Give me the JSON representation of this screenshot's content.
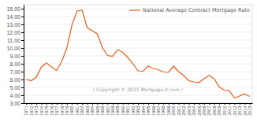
{
  "chart_data": {
    "type": "line",
    "x": [
      1971,
      1972,
      1973,
      1974,
      1975,
      1976,
      1977,
      1978,
      1979,
      1980,
      1981,
      1982,
      1983,
      1984,
      1985,
      1986,
      1987,
      1988,
      1989,
      1990,
      1991,
      1992,
      1993,
      1994,
      1995,
      1996,
      1997,
      1998,
      1999,
      2000,
      2001,
      2002,
      2003,
      2004,
      2005,
      2006,
      2007,
      2008,
      2009,
      2010,
      2011,
      2012,
      2013,
      2014,
      2015
    ],
    "series": [
      {
        "name": "National Average Contract Mortgage Rate",
        "color": "#e8601c",
        "values": [
          6.0,
          5.85,
          6.3,
          7.6,
          8.1,
          7.6,
          7.15,
          8.3,
          10.0,
          12.9,
          14.7,
          14.8,
          12.6,
          12.2,
          11.8,
          10.05,
          9.05,
          8.95,
          9.8,
          9.45,
          8.8,
          8.0,
          7.1,
          7.05,
          7.7,
          7.4,
          7.25,
          6.95,
          6.9,
          7.7,
          7.0,
          6.5,
          5.85,
          5.7,
          5.6,
          6.1,
          6.5,
          6.1,
          5.05,
          4.65,
          4.55,
          3.65,
          3.9,
          4.15,
          3.85
        ]
      }
    ],
    "xlim": [
      1970.5,
      2015.5
    ],
    "xticks": [
      1971,
      1972,
      1973,
      1974,
      1975,
      1976,
      1977,
      1978,
      1979,
      1980,
      1981,
      1982,
      1983,
      1984,
      1985,
      1986,
      1987,
      1988,
      1989,
      1990,
      1991,
      1992,
      1993,
      1994,
      1995,
      1996,
      1997,
      1998,
      1999,
      2000,
      2001,
      2002,
      2003,
      2004,
      2005,
      2006,
      2007,
      2008,
      2009,
      2010,
      2011,
      2012,
      2013,
      2014,
      2015
    ],
    "ylim": [
      3.0,
      15.5
    ],
    "yticks": [
      {
        "value": 3.0,
        "label": "3.00"
      },
      {
        "value": 4.0,
        "label": "4.00"
      },
      {
        "value": 5.0,
        "label": "5.00"
      },
      {
        "value": 6.0,
        "label": "6.00"
      },
      {
        "value": 7.0,
        "label": "7.00"
      },
      {
        "value": 8.0,
        "label": "8.00"
      },
      {
        "value": 9.0,
        "label": "9.00"
      },
      {
        "value": 10.0,
        "label": "10.00"
      },
      {
        "value": 11.0,
        "label": "11.00"
      },
      {
        "value": 12.0,
        "label": "12.00"
      },
      {
        "value": 13.0,
        "label": "13.00"
      },
      {
        "value": 14.0,
        "label": "14.00"
      },
      {
        "value": 15.0,
        "label": "15.00"
      }
    ],
    "grid": true,
    "legend": "upper right",
    "annotations": [
      "( Copyright © 2015 Mortgage-X.com )"
    ]
  }
}
